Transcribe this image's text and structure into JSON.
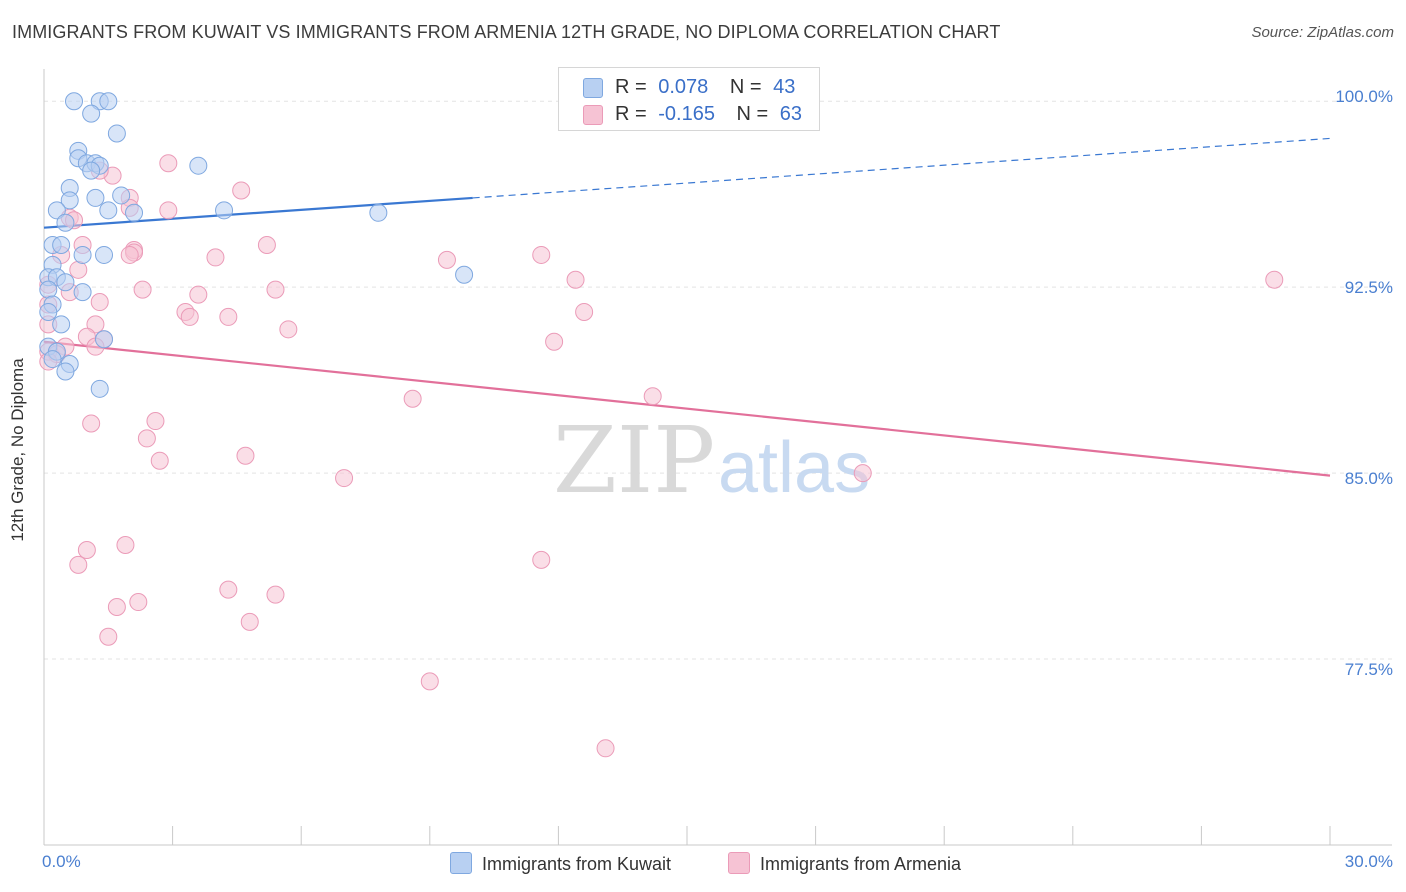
{
  "title": "IMMIGRANTS FROM KUWAIT VS IMMIGRANTS FROM ARMENIA 12TH GRADE, NO DIPLOMA CORRELATION CHART",
  "source": "Source: ZipAtlas.com",
  "watermark": {
    "zip": "ZIP",
    "atlas": "atlas"
  },
  "colors": {
    "kuwait_fill": "#b8d0f2",
    "kuwait_stroke": "#7fa8e0",
    "kuwait_line": "#3a78d2",
    "armenia_fill": "#f6c3d4",
    "armenia_stroke": "#eb9bb8",
    "armenia_line": "#e2709a",
    "tick_label": "#4a7fd0",
    "grid": "#e3e3e3"
  },
  "legend_top": {
    "rows": [
      {
        "r_label": "R =",
        "r_value": "0.078",
        "n_label": "N =",
        "n_value": "43"
      },
      {
        "r_label": "R =",
        "r_value": "-0.165",
        "n_label": "N =",
        "n_value": "63"
      }
    ]
  },
  "legend_bottom": [
    "Immigrants from Kuwait",
    "Immigrants from Armenia"
  ],
  "chart_data": {
    "type": "scatter",
    "title": "IMMIGRANTS FROM KUWAIT VS IMMIGRANTS FROM ARMENIA 12TH GRADE, NO DIPLOMA CORRELATION CHART",
    "xlabel": "",
    "ylabel": "12th Grade, No Diploma",
    "xlim": [
      0,
      30
    ],
    "ylim": [
      70,
      101.3
    ],
    "x_tick_labels": [
      "0.0%",
      "30.0%"
    ],
    "y_ticks": [
      100.0,
      92.5,
      85.0,
      77.5
    ],
    "y_tick_labels": [
      "100.0%",
      "92.5%",
      "85.0%",
      "77.5%"
    ],
    "grid": true,
    "series": [
      {
        "name": "Immigrants from Kuwait",
        "R": 0.078,
        "N": 43,
        "trend": {
          "x0": 0,
          "y0": 94.9,
          "x1": 10.0,
          "y1": 96.1,
          "dashed_to_x": 30,
          "dashed_to_y": 98.5
        },
        "points": [
          [
            0.7,
            100.0
          ],
          [
            1.3,
            100.0
          ],
          [
            1.5,
            100.0
          ],
          [
            1.1,
            99.5
          ],
          [
            1.7,
            98.7
          ],
          [
            0.8,
            98.0
          ],
          [
            0.8,
            97.7
          ],
          [
            1.0,
            97.5
          ],
          [
            1.2,
            97.5
          ],
          [
            1.3,
            97.4
          ],
          [
            1.1,
            97.2
          ],
          [
            3.6,
            97.4
          ],
          [
            0.6,
            96.5
          ],
          [
            1.2,
            96.1
          ],
          [
            1.8,
            96.2
          ],
          [
            0.6,
            96.0
          ],
          [
            0.3,
            95.6
          ],
          [
            1.5,
            95.6
          ],
          [
            2.1,
            95.5
          ],
          [
            4.2,
            95.6
          ],
          [
            7.8,
            95.5
          ],
          [
            0.5,
            95.1
          ],
          [
            0.2,
            94.2
          ],
          [
            0.4,
            94.2
          ],
          [
            0.9,
            93.8
          ],
          [
            1.4,
            93.8
          ],
          [
            0.2,
            93.4
          ],
          [
            0.1,
            92.9
          ],
          [
            0.3,
            92.9
          ],
          [
            0.5,
            92.7
          ],
          [
            9.8,
            93.0
          ],
          [
            0.1,
            92.4
          ],
          [
            0.9,
            92.3
          ],
          [
            0.2,
            91.8
          ],
          [
            0.1,
            91.5
          ],
          [
            0.4,
            91.0
          ],
          [
            1.4,
            90.4
          ],
          [
            0.1,
            90.1
          ],
          [
            0.3,
            89.9
          ],
          [
            0.2,
            89.6
          ],
          [
            0.6,
            89.4
          ],
          [
            0.5,
            89.1
          ],
          [
            1.3,
            88.4
          ]
        ]
      },
      {
        "name": "Immigrants from Armenia",
        "R": -0.165,
        "N": 63,
        "trend": {
          "x0": 0,
          "y0": 90.3,
          "x1": 30,
          "y1": 84.9
        },
        "points": [
          [
            2.9,
            97.5
          ],
          [
            1.6,
            97.0
          ],
          [
            1.3,
            97.2
          ],
          [
            4.6,
            96.4
          ],
          [
            2.0,
            96.1
          ],
          [
            2.0,
            95.7
          ],
          [
            2.9,
            95.6
          ],
          [
            0.6,
            95.3
          ],
          [
            0.7,
            95.2
          ],
          [
            0.9,
            94.2
          ],
          [
            2.1,
            94.0
          ],
          [
            5.2,
            94.2
          ],
          [
            2.1,
            93.9
          ],
          [
            2.0,
            93.8
          ],
          [
            4.0,
            93.7
          ],
          [
            0.4,
            93.8
          ],
          [
            9.4,
            93.6
          ],
          [
            11.6,
            93.8
          ],
          [
            0.8,
            93.2
          ],
          [
            0.1,
            92.6
          ],
          [
            2.3,
            92.4
          ],
          [
            5.4,
            92.4
          ],
          [
            12.4,
            92.8
          ],
          [
            28.7,
            92.8
          ],
          [
            0.6,
            92.3
          ],
          [
            3.6,
            92.2
          ],
          [
            1.3,
            91.9
          ],
          [
            0.1,
            91.8
          ],
          [
            3.3,
            91.5
          ],
          [
            4.3,
            91.3
          ],
          [
            3.4,
            91.3
          ],
          [
            12.6,
            91.5
          ],
          [
            0.1,
            91.0
          ],
          [
            1.2,
            91.0
          ],
          [
            5.7,
            90.8
          ],
          [
            1.0,
            90.5
          ],
          [
            1.4,
            90.4
          ],
          [
            11.9,
            90.3
          ],
          [
            0.5,
            90.1
          ],
          [
            1.2,
            90.1
          ],
          [
            0.1,
            89.9
          ],
          [
            0.3,
            89.8
          ],
          [
            0.1,
            89.5
          ],
          [
            8.6,
            88.0
          ],
          [
            14.2,
            88.1
          ],
          [
            2.6,
            87.1
          ],
          [
            1.1,
            87.0
          ],
          [
            2.4,
            86.4
          ],
          [
            4.7,
            85.7
          ],
          [
            2.7,
            85.5
          ],
          [
            7.0,
            84.8
          ],
          [
            19.1,
            85.0
          ],
          [
            1.9,
            82.1
          ],
          [
            1.0,
            81.9
          ],
          [
            0.8,
            81.3
          ],
          [
            11.6,
            81.5
          ],
          [
            4.3,
            80.3
          ],
          [
            5.4,
            80.1
          ],
          [
            2.2,
            79.8
          ],
          [
            1.7,
            79.6
          ],
          [
            4.8,
            79.0
          ],
          [
            1.5,
            78.4
          ],
          [
            9.0,
            76.6
          ],
          [
            13.1,
            73.9
          ]
        ]
      }
    ]
  }
}
